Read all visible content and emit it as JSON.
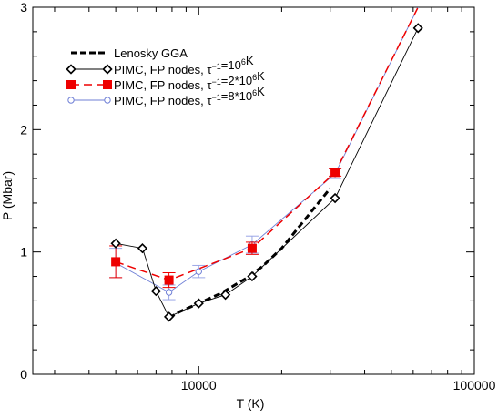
{
  "chart_data": {
    "type": "line",
    "xscale": "log",
    "xlim": [
      2500,
      100000
    ],
    "ylim": [
      0,
      3
    ],
    "xlabel": "T (K)",
    "ylabel": "P (Mbar)",
    "xtick_labels": [
      {
        "value": 10000,
        "label": "10000"
      },
      {
        "value": 100000,
        "label": "100000"
      }
    ],
    "ytick_labels": [
      {
        "value": 0,
        "label": "0"
      },
      {
        "value": 1,
        "label": "1"
      },
      {
        "value": 2,
        "label": "2"
      },
      {
        "value": 3,
        "label": "3"
      }
    ],
    "grid": false,
    "legend_position": "top-left",
    "series": [
      {
        "key": "lenosky",
        "legend_text": "Lenosky GGA",
        "color": "#000000",
        "style": "thick-dashed",
        "marker": "none",
        "x": [
          7800,
          8500,
          10000,
          12000,
          15000,
          17000,
          20000,
          25000,
          30000
        ],
        "y": [
          0.46,
          0.51,
          0.58,
          0.66,
          0.79,
          0.88,
          1.03,
          1.3,
          1.52
        ]
      },
      {
        "key": "pimc1",
        "legend_prefix": "PIMC, FP nodes, ",
        "legend_tau": "τ",
        "legend_exp": "−1",
        "legend_eq": "=10",
        "legend_sup": "6",
        "legend_unit": "K",
        "color": "#000000",
        "style": "thin-solid",
        "marker": "diamond-open",
        "x": [
          5000,
          6250,
          7000,
          7800,
          10000,
          12500,
          15625,
          31250,
          62500
        ],
        "y": [
          1.07,
          1.03,
          0.68,
          0.47,
          0.58,
          0.65,
          0.8,
          1.44,
          2.83
        ]
      },
      {
        "key": "pimc2",
        "legend_prefix": "PIMC, FP nodes, ",
        "legend_tau": "τ",
        "legend_exp": "−1",
        "legend_eq": "=2*10",
        "legend_sup": "6",
        "legend_unit": "K",
        "color": "#ee0000",
        "style": "dashed",
        "marker": "square-filled",
        "x": [
          5000,
          7800,
          15625,
          31250,
          62500
        ],
        "y": [
          0.92,
          0.77,
          1.03,
          1.65,
          3.0
        ],
        "y_err": [
          0.13,
          0.06,
          0.05,
          0.03,
          0.0
        ]
      },
      {
        "key": "pimc8",
        "legend_prefix": "PIMC, FP nodes, ",
        "legend_tau": "τ",
        "legend_exp": "−1",
        "legend_eq": "=8*10",
        "legend_sup": "6",
        "legend_unit": "K",
        "color": "#6f7fd6",
        "style": "thin-solid",
        "marker": "circle-open",
        "x": [
          5000,
          7800,
          10000,
          15625,
          31250,
          62500
        ],
        "y": [
          0.91,
          0.67,
          0.84,
          1.06,
          1.64,
          3.0
        ],
        "y_err": [
          0.12,
          0.06,
          0.05,
          0.07,
          0.04,
          0.0
        ]
      }
    ]
  }
}
